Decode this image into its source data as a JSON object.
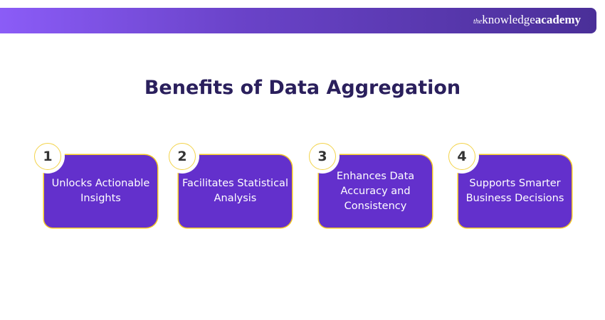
{
  "brand": {
    "prefix": "the",
    "name": "knowledge",
    "suffix": "academy"
  },
  "title": "Benefits of Data Aggregation",
  "colors": {
    "card": "#6330cc",
    "border": "#f3c623",
    "title": "#2a1f5c"
  },
  "items": [
    {
      "number": "1",
      "label": "Unlocks Actionable Insights"
    },
    {
      "number": "2",
      "label": "Facilitates Statistical Analysis"
    },
    {
      "number": "3",
      "label": "Enhances Data Accuracy and Consistency"
    },
    {
      "number": "4",
      "label": "Supports Smarter Business Decisions"
    }
  ]
}
